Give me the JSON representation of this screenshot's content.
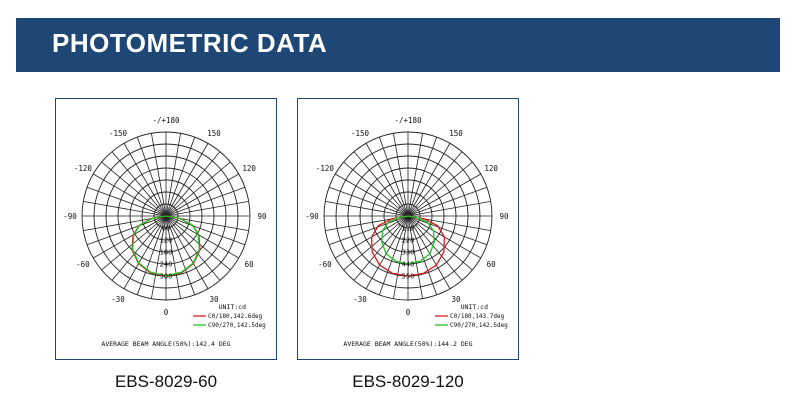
{
  "header": {
    "title": "PHOTOMETRIC DATA"
  },
  "colors": {
    "banner": "#1f4776",
    "c0": "#e0161b",
    "c90": "#1ec41e"
  },
  "chart_data": [
    {
      "type": "polar",
      "caption": "EBS-8029-60",
      "angle_labels": [
        "-/+180",
        "-150",
        "150",
        "-120",
        "120",
        "-90",
        "90",
        "-60",
        "60",
        "-30",
        "30",
        "0"
      ],
      "radial_labels": [
        "60",
        "120",
        "180",
        "240",
        "300"
      ],
      "radial_max": 300,
      "unit": "UNIT:cd",
      "series": [
        {
          "name": "C0/180,142.6deg",
          "color": "#e0161b",
          "angles": [
            0,
            15,
            30,
            45,
            60,
            71,
            80,
            90
          ],
          "values": [
            300,
            295,
            275,
            240,
            190,
            140,
            70,
            0
          ]
        },
        {
          "name": "C90/270,142.5deg",
          "color": "#1ec41e",
          "angles": [
            0,
            15,
            30,
            45,
            60,
            71,
            80,
            90
          ],
          "values": [
            298,
            292,
            272,
            236,
            186,
            138,
            68,
            0
          ]
        }
      ],
      "beam_text": "AVERAGE BEAM ANGLE(50%):142.4 DEG"
    },
    {
      "type": "polar",
      "caption": "EBS-8029-120",
      "angle_labels": [
        "-/+180",
        "-150",
        "150",
        "-120",
        "120",
        "-90",
        "90",
        "-60",
        "60",
        "-30",
        "30",
        "0"
      ],
      "radial_labels": [
        "110",
        "220",
        "330",
        "440",
        "550"
      ],
      "radial_max": 550,
      "unit": "UNIT:cd",
      "series": [
        {
          "name": "C0/180,143.7deg",
          "color": "#e0161b",
          "angles": [
            0,
            15,
            30,
            45,
            60,
            72,
            80,
            90
          ],
          "values": [
            550,
            545,
            520,
            465,
            385,
            285,
            150,
            0
          ]
        },
        {
          "name": "C90/270,142.5deg",
          "color": "#1ec41e",
          "angles": [
            0,
            15,
            30,
            45,
            60,
            72,
            80,
            90
          ],
          "values": [
            440,
            430,
            400,
            340,
            270,
            190,
            95,
            0
          ]
        }
      ],
      "beam_text": "AVERAGE BEAM ANGLE(50%):144.2 DEG"
    }
  ]
}
